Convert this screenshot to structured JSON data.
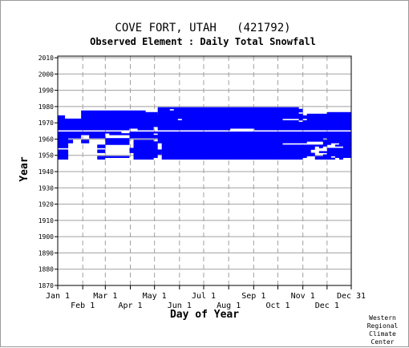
{
  "chart_data": {
    "type": "heatmap",
    "title": "COVE FORT, UTAH   (421792)",
    "subtitle": "Observed Element : Daily Total Snowfall",
    "xlabel": "Day of Year",
    "ylabel": "Year",
    "credit": [
      "Western",
      "Regional",
      "Climate",
      "Center"
    ],
    "x_range_days": [
      1,
      365
    ],
    "y_range_years": [
      1870,
      2011
    ],
    "grid": true,
    "x_ticks_top_row": [
      {
        "label": "Jan 1",
        "day": 1
      },
      {
        "label": "Mar 1",
        "day": 60
      },
      {
        "label": "May 1",
        "day": 121
      },
      {
        "label": "Jul 1",
        "day": 182
      },
      {
        "label": "Sep 1",
        "day": 244
      },
      {
        "label": "Nov 1",
        "day": 305
      },
      {
        "label": "Dec 31",
        "day": 365
      }
    ],
    "x_ticks_bottom_row": [
      {
        "label": "Feb 1",
        "day": 32
      },
      {
        "label": "Apr 1",
        "day": 91
      },
      {
        "label": "Jun 1",
        "day": 152
      },
      {
        "label": "Aug 1",
        "day": 213
      },
      {
        "label": "Oct 1",
        "day": 274
      },
      {
        "label": "Dec 1",
        "day": 335
      }
    ],
    "y_ticks": [
      1870,
      1880,
      1890,
      1900,
      1910,
      1920,
      1930,
      1940,
      1950,
      1960,
      1970,
      1980,
      1990,
      2000,
      2010
    ],
    "series_color": "#0000ff",
    "coverage": [
      {
        "year": 1948,
        "segments": [
          [
            1,
            14
          ],
          [
            50,
            60
          ],
          [
            95,
            120
          ],
          [
            130,
            305
          ],
          [
            320,
            345
          ],
          [
            350,
            355
          ]
        ]
      },
      {
        "year": 1949,
        "segments": [
          [
            1,
            14
          ],
          [
            50,
            90
          ],
          [
            95,
            125
          ],
          [
            130,
            310
          ],
          [
            320,
            340
          ],
          [
            345,
            365
          ]
        ]
      },
      {
        "year": 1950,
        "segments": [
          [
            1,
            14
          ],
          [
            95,
            125
          ],
          [
            130,
            320
          ],
          [
            330,
            365
          ]
        ]
      },
      {
        "year": 1951,
        "segments": [
          [
            1,
            14
          ],
          [
            95,
            130
          ],
          [
            130,
            320
          ],
          [
            335,
            365
          ]
        ]
      },
      {
        "year": 1952,
        "segments": [
          [
            1,
            14
          ],
          [
            50,
            60
          ],
          [
            90,
            130
          ],
          [
            130,
            315
          ],
          [
            325,
            365
          ]
        ]
      },
      {
        "year": 1953,
        "segments": [
          [
            1,
            14
          ],
          [
            50,
            60
          ],
          [
            90,
            315
          ],
          [
            335,
            365
          ]
        ]
      },
      {
        "year": 1954,
        "segments": [
          [
            90,
            125
          ],
          [
            130,
            320
          ],
          [
            335,
            365
          ]
        ]
      },
      {
        "year": 1955,
        "segments": [
          [
            1,
            14
          ],
          [
            50,
            60
          ],
          [
            95,
            125
          ],
          [
            130,
            320
          ],
          [
            325,
            330
          ],
          [
            355,
            365
          ]
        ]
      },
      {
        "year": 1956,
        "segments": [
          [
            1,
            14
          ],
          [
            50,
            60
          ],
          [
            95,
            125
          ],
          [
            130,
            335
          ],
          [
            345,
            365
          ]
        ]
      },
      {
        "year": 1957,
        "segments": [
          [
            1,
            14
          ],
          [
            60,
            90
          ],
          [
            95,
            125
          ],
          [
            130,
            280
          ],
          [
            330,
            340
          ],
          [
            350,
            365
          ]
        ]
      },
      {
        "year": 1958,
        "segments": [
          [
            1,
            20
          ],
          [
            30,
            40
          ],
          [
            60,
            90
          ],
          [
            95,
            310
          ],
          [
            330,
            365
          ]
        ]
      },
      {
        "year": 1959,
        "segments": [
          [
            1,
            20
          ],
          [
            30,
            40
          ],
          [
            60,
            90
          ],
          [
            95,
            120
          ],
          [
            125,
            365
          ]
        ]
      },
      {
        "year": 1960,
        "segments": [
          [
            1,
            14
          ],
          [
            60,
            90
          ],
          [
            125,
            330
          ],
          [
            335,
            365
          ]
        ]
      },
      {
        "year": 1961,
        "segments": [
          [
            1,
            30
          ],
          [
            40,
            60
          ],
          [
            90,
            365
          ]
        ]
      },
      {
        "year": 1962,
        "segments": [
          [
            1,
            30
          ],
          [
            40,
            60
          ],
          [
            90,
            365
          ]
        ]
      },
      {
        "year": 1963,
        "segments": [
          [
            1,
            60
          ],
          [
            65,
            120
          ],
          [
            125,
            365
          ]
        ]
      },
      {
        "year": 1964,
        "segments": [
          [
            1,
            80
          ],
          [
            90,
            365
          ]
        ]
      },
      {
        "year": 1966,
        "segments": [
          [
            1,
            90
          ],
          [
            100,
            120
          ],
          [
            125,
            215
          ],
          [
            245,
            365
          ]
        ]
      },
      {
        "year": 1967,
        "segments": [
          [
            1,
            120
          ],
          [
            125,
            365
          ]
        ]
      },
      {
        "year": 1968,
        "segments": [
          [
            1,
            365
          ]
        ]
      },
      {
        "year": 1969,
        "segments": [
          [
            1,
            365
          ]
        ]
      },
      {
        "year": 1970,
        "segments": [
          [
            1,
            365
          ]
        ]
      },
      {
        "year": 1971,
        "segments": [
          [
            1,
            300
          ],
          [
            305,
            365
          ]
        ]
      },
      {
        "year": 1972,
        "segments": [
          [
            1,
            150
          ],
          [
            155,
            280
          ],
          [
            300,
            305
          ],
          [
            310,
            365
          ]
        ]
      },
      {
        "year": 1973,
        "segments": [
          [
            1,
            10
          ],
          [
            30,
            365
          ]
        ]
      },
      {
        "year": 1974,
        "segments": [
          [
            1,
            10
          ],
          [
            30,
            365
          ]
        ]
      },
      {
        "year": 1975,
        "segments": [
          [
            30,
            125
          ],
          [
            125,
            305
          ],
          [
            310,
            365
          ]
        ]
      },
      {
        "year": 1976,
        "segments": [
          [
            30,
            125
          ],
          [
            125,
            300
          ],
          [
            335,
            365
          ]
        ]
      },
      {
        "year": 1977,
        "segments": [
          [
            30,
            110
          ],
          [
            125,
            305
          ]
        ]
      },
      {
        "year": 1978,
        "segments": [
          [
            125,
            140
          ],
          [
            145,
            305
          ]
        ]
      },
      {
        "year": 1979,
        "segments": [
          [
            125,
            300
          ]
        ]
      }
    ]
  }
}
